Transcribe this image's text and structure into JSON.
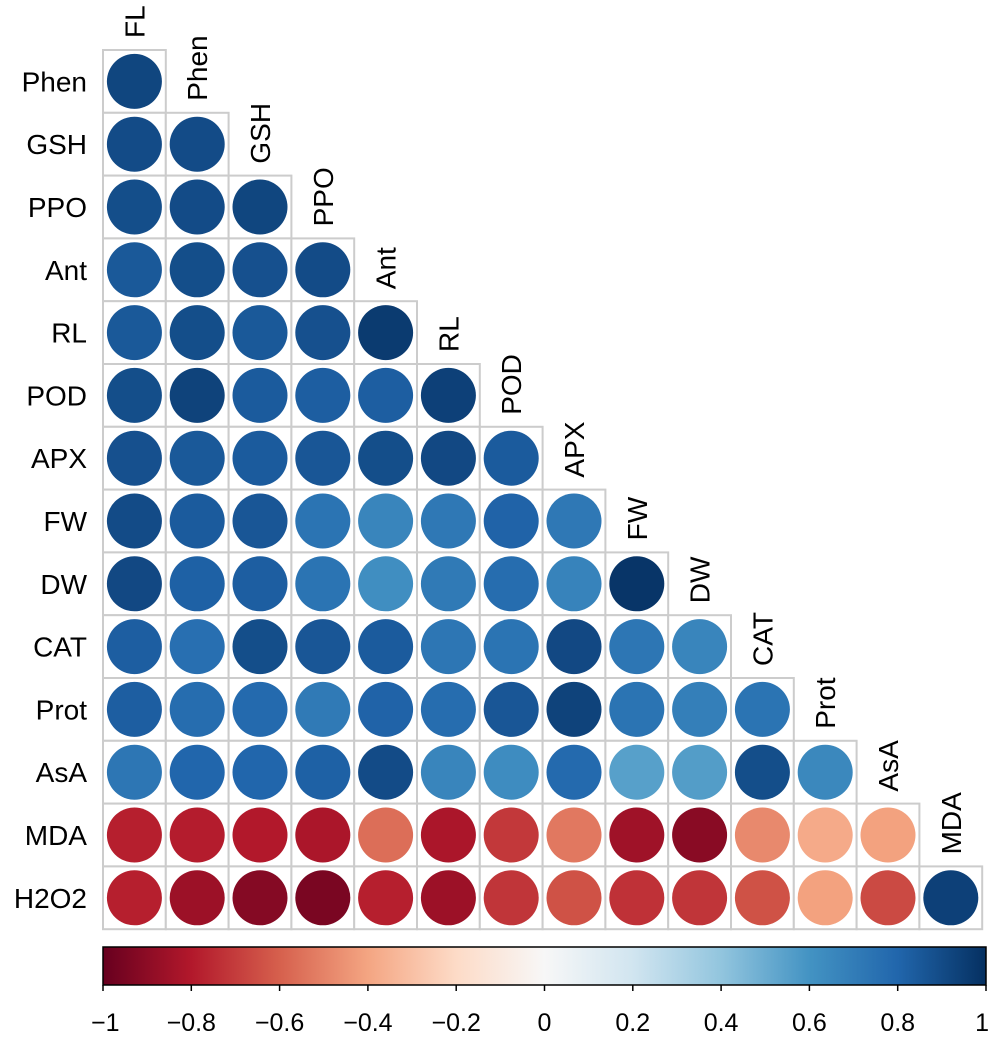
{
  "chart_data": {
    "type": "heatmap",
    "subtype": "correlation-matrix-circles-lower-triangle",
    "variables": [
      "FL",
      "Phen",
      "GSH",
      "PPO",
      "Ant",
      "RL",
      "POD",
      "APX",
      "FW",
      "DW",
      "CAT",
      "Prot",
      "AsA",
      "MDA",
      "H2O2"
    ],
    "row_labels": [
      "Phen",
      "GSH",
      "PPO",
      "Ant",
      "RL",
      "POD",
      "APX",
      "FW",
      "DW",
      "CAT",
      "Prot",
      "AsA",
      "MDA",
      "H2O2"
    ],
    "col_labels": [
      "FL",
      "Phen",
      "GSH",
      "PPO",
      "Ant",
      "RL",
      "POD",
      "APX",
      "FW",
      "DW",
      "CAT",
      "Prot",
      "AsA",
      "MDA"
    ],
    "correlations": [
      [
        0.92
      ],
      [
        0.9,
        0.9
      ],
      [
        0.89,
        0.9,
        0.92
      ],
      [
        0.85,
        0.89,
        0.88,
        0.9
      ],
      [
        0.85,
        0.89,
        0.85,
        0.88,
        0.96
      ],
      [
        0.89,
        0.93,
        0.84,
        0.83,
        0.83,
        0.94
      ],
      [
        0.88,
        0.85,
        0.84,
        0.86,
        0.89,
        0.91,
        0.84
      ],
      [
        0.9,
        0.84,
        0.86,
        0.74,
        0.66,
        0.72,
        0.81,
        0.72
      ],
      [
        0.91,
        0.82,
        0.83,
        0.74,
        0.62,
        0.71,
        0.77,
        0.67,
        0.98
      ],
      [
        0.83,
        0.76,
        0.89,
        0.86,
        0.84,
        0.73,
        0.74,
        0.91,
        0.73,
        0.66
      ],
      [
        0.83,
        0.77,
        0.78,
        0.71,
        0.81,
        0.77,
        0.86,
        0.93,
        0.74,
        0.69,
        0.74
      ],
      [
        0.73,
        0.8,
        0.8,
        0.82,
        0.9,
        0.66,
        0.63,
        0.78,
        0.55,
        0.56,
        0.89,
        0.65
      ],
      [
        -0.78,
        -0.79,
        -0.8,
        -0.82,
        -0.56,
        -0.82,
        -0.71,
        -0.53,
        -0.85,
        -0.91,
        -0.48,
        -0.38,
        -0.41
      ],
      [
        -0.78,
        -0.86,
        -0.92,
        -0.95,
        -0.78,
        -0.86,
        -0.72,
        -0.64,
        -0.73,
        -0.72,
        -0.64,
        -0.41,
        -0.66,
        0.94
      ]
    ],
    "colorbar": {
      "range": [
        -1,
        1
      ],
      "tick_labels": [
        "−1",
        "−0.8",
        "−0.6",
        "−0.4",
        "−0.2",
        "0",
        "0.2",
        "0.4",
        "0.6",
        "0.8",
        "1"
      ],
      "tick_values": [
        -1,
        -0.8,
        -0.6,
        -0.4,
        -0.2,
        0,
        0.2,
        0.4,
        0.6,
        0.8,
        1
      ],
      "colors": [
        "#67001f",
        "#b2182b",
        "#d6604d",
        "#f4a582",
        "#fddbc7",
        "#f7f7f7",
        "#d1e5f0",
        "#92c5de",
        "#4393c3",
        "#2166ac",
        "#053061"
      ]
    },
    "title": "",
    "xlabel": "",
    "ylabel": ""
  }
}
